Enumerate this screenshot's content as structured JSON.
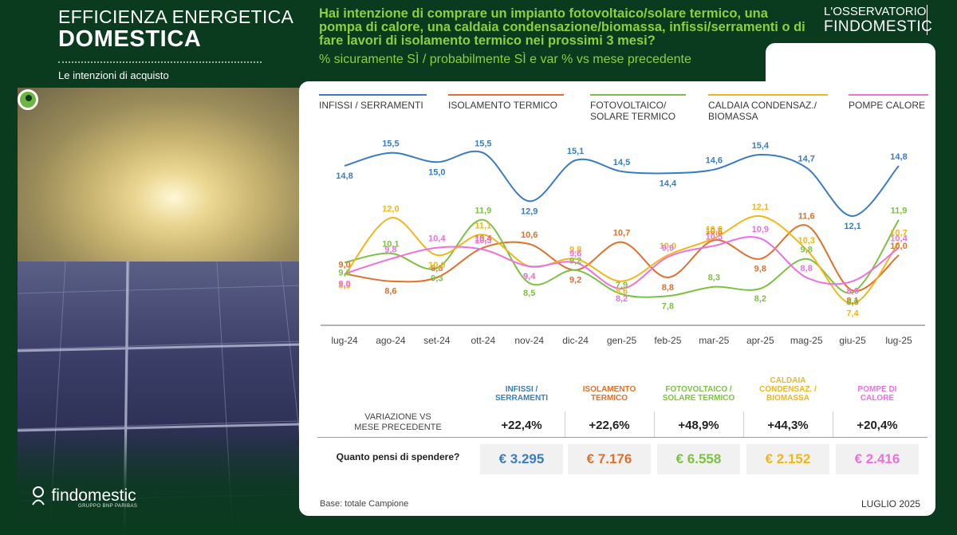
{
  "header": {
    "title_line1": "EFFICIENZA ENERGETICA",
    "title_line2": "DOMESTICA",
    "subtitle": "Le intenzioni di acquisto",
    "question": "Hai intenzione di comprare un impianto fotovoltaico/solare termico, una pompa di calore, una caldaia condensazione/biomassa, infissi/serramenti o di fare lavori di isolamento termico nei prossimi 3 mesi?",
    "question_sub": "% sicuramente SÌ / probabilmente SÌ e var % vs mese precedente"
  },
  "brand": {
    "observatory_line1": "L'OSSERVATORIO",
    "observatory_line2": "FINDOMESTIC",
    "logo_name": "findomestic",
    "logo_sub": "GRUPPO BNP PARIBAS"
  },
  "colors": {
    "background": "#0a3b1e",
    "accent_green": "#8ed036",
    "infissi": "#3a7cc4",
    "isolamento": "#e0702c",
    "fotovoltaico": "#7cc242",
    "caldaia": "#f2b61a",
    "pompe": "#ef6fe1"
  },
  "chart_data": {
    "type": "line",
    "categories": [
      "lug-24",
      "ago-24",
      "set-24",
      "ott-24",
      "nov-24",
      "dic-24",
      "gen-25",
      "feb-25",
      "mar-25",
      "apr-25",
      "mag-25",
      "giu-25",
      "lug-25"
    ],
    "series": [
      {
        "name": "INFISSI / SERRAMENTI",
        "color": "#3a7cc4",
        "values": [
          14.8,
          15.5,
          15.0,
          15.5,
          12.9,
          15.1,
          14.5,
          14.4,
          14.6,
          15.4,
          14.7,
          12.1,
          14.8
        ],
        "labels": [
          "14,8",
          "15,5",
          "15,0",
          "15,5",
          "12,9",
          "15,1",
          "14,5",
          "14,4",
          "14,6",
          "15,4",
          "14,7",
          "12,1",
          "14,8"
        ]
      },
      {
        "name": "ISOLAMENTO TERMICO",
        "color": "#e0702c",
        "values": [
          9.0,
          8.6,
          8.8,
          10.4,
          10.6,
          9.2,
          10.7,
          8.8,
          10.8,
          9.8,
          11.6,
          8.1,
          10.0
        ],
        "labels": [
          "9,0",
          "8,6",
          "8,8",
          "10,4",
          "10,6",
          "9,2",
          "10,7",
          "8,8",
          "10,8",
          "9,8",
          "11,6",
          "8,1",
          "10,0"
        ]
      },
      {
        "name": "FOTOVOLTAICO/ SOLARE TERMICO",
        "color": "#7cc242",
        "values": [
          9.6,
          10.1,
          9.3,
          11.9,
          8.5,
          9.2,
          7.9,
          7.8,
          8.3,
          8.2,
          9.8,
          8.0,
          11.9
        ],
        "labels": [
          "9,6",
          "10,1",
          "9,3",
          "11,9",
          "8,5",
          "9,2",
          "7,9",
          "7,8",
          "8,3",
          "8,2",
          "9,8",
          "8,0",
          "11,9"
        ]
      },
      {
        "name": "CALDAIA CONDENSAZ./ BIOMASSA",
        "color": "#f2b61a",
        "values": [
          8.9,
          12.0,
          10.0,
          11.1,
          9.4,
          9.8,
          8.6,
          10.0,
          10.9,
          12.1,
          10.3,
          7.4,
          10.7
        ],
        "labels": [
          "8,9",
          "12,0",
          "10,0",
          "11,1",
          "9,4",
          "9,8",
          "8,6",
          "10,0",
          "10,9",
          "12,1",
          "10,3",
          "7,4",
          "10,7"
        ]
      },
      {
        "name": "POMPE CALORE",
        "color": "#ef6fe1",
        "values": [
          9.0,
          9.8,
          10.4,
          10.3,
          9.4,
          9.6,
          8.2,
          9.9,
          10.5,
          10.9,
          8.8,
          8.6,
          10.4
        ],
        "labels": [
          "9,0",
          "9,8",
          "10,4",
          "10,3",
          "9,4",
          "9,6",
          "8,2",
          "9,9",
          "10,5",
          "10,9",
          "8,8",
          "8,6",
          "10,4"
        ]
      }
    ],
    "legend": [
      "INFISSI / SERRAMENTI",
      "ISOLAMENTO TERMICO",
      "FOTOVOLTAICO/ SOLARE TERMICO",
      "CALDAIA CONDENSAZ./ BIOMASSA",
      "POMPE CALORE"
    ],
    "legend_position": "top",
    "ylim": [
      7,
      16
    ],
    "grid": false
  },
  "legend": {
    "infissi": "INFISSI / SERRAMENTI",
    "isolamento": "ISOLAMENTO TERMICO",
    "fotovoltaico_1": "FOTOVOLTAICO/",
    "fotovoltaico_2": "SOLARE TERMICO",
    "caldaia_1": "CALDAIA CONDENSAZ./",
    "caldaia_2": "BIOMASSA",
    "pompe": "POMPE CALORE"
  },
  "table": {
    "headers": [
      {
        "line1": "INFISSI /",
        "line2": "SERRAMENTI",
        "color": "#3a7cc4"
      },
      {
        "line1": "ISOLAMENTO",
        "line2": "TERMICO",
        "color": "#e0702c"
      },
      {
        "line1": "FOTOVOLTAICO /",
        "line2": "SOLARE TERMICO",
        "color": "#7cc242"
      },
      {
        "line1": "CALDAIA",
        "line2": "CONDENSAZ. /",
        "line3": "BIOMASSA",
        "color": "#f2b61a"
      },
      {
        "line1": "POMPE DI",
        "line2": "CALORE",
        "color": "#ef6fe1"
      }
    ],
    "variation_label_1": "VARIAZIONE VS",
    "variation_label_2": "MESE PRECEDENTE",
    "variation_values": [
      "+22,4%",
      "+22,6%",
      "+48,9%",
      "+44,3%",
      "+20,4%"
    ],
    "spend_label": "Quanto pensi di spendere?",
    "spend_values": [
      "€ 3.295",
      "€ 7.176",
      "€ 6.558",
      "€ 2.152",
      "€ 2.416"
    ]
  },
  "footer": {
    "base": "Base: totale Campione",
    "date": "LUGLIO 2025"
  }
}
